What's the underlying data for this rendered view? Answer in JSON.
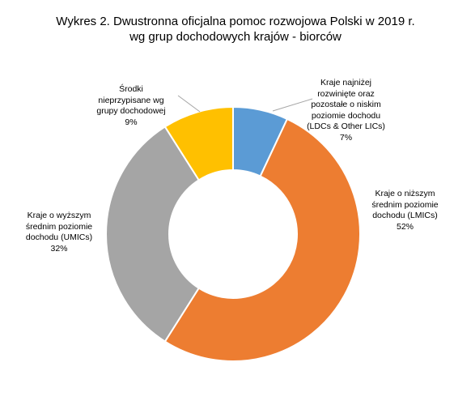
{
  "chart_data": {
    "type": "pie",
    "donut": true,
    "title": [
      "Wykres 2. Dwustronna oficjalna pomoc rozwojowa Polski w 2019 r.",
      "wg grup dochodowych krajów - biorców"
    ],
    "slices": [
      {
        "label": [
          "Kraje najniżej",
          "rozwinięte oraz",
          "pozostałe o niskim",
          "poziomie dochodu",
          "(LDCs & Other LICs)"
        ],
        "value": 7,
        "value_label": "7%",
        "color": "#5b9bd5"
      },
      {
        "label": [
          "Kraje o niższym",
          "średnim poziomie",
          "dochodu (LMICs)"
        ],
        "value": 52,
        "value_label": "52%",
        "color": "#ed7d31"
      },
      {
        "label": [
          "Kraje o wyższym",
          "średnim poziomie",
          "dochodu (UMICs)"
        ],
        "value": 32,
        "value_label": "32%",
        "color": "#a5a5a5"
      },
      {
        "label": [
          "Środki",
          "nieprzypisane wg",
          "grupy dochodowej"
        ],
        "value": 9,
        "value_label": "9%",
        "color": "#ffc000"
      }
    ],
    "start_angle_deg": 0,
    "direction": "clockwise",
    "legend": "none",
    "leader_lines": true
  }
}
